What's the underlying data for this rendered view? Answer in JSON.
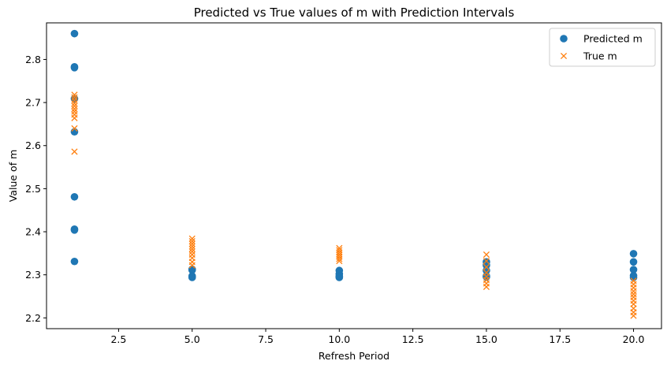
{
  "chart_data": {
    "type": "scatter",
    "title": "Predicted vs True values of m with Prediction Intervals",
    "xlabel": "Refresh Period",
    "ylabel": "Value of m",
    "xlim": [
      0.05,
      20.95
    ],
    "ylim": [
      2.175,
      2.885
    ],
    "xticks": [
      "2.5",
      "5.0",
      "7.5",
      "10.0",
      "12.5",
      "15.0",
      "17.5",
      "20.0"
    ],
    "xtick_values": [
      2.5,
      5.0,
      7.5,
      10.0,
      12.5,
      15.0,
      17.5,
      20.0
    ],
    "yticks": [
      "2.2",
      "2.3",
      "2.4",
      "2.5",
      "2.6",
      "2.7",
      "2.8"
    ],
    "ytick_values": [
      2.2,
      2.3,
      2.4,
      2.5,
      2.6,
      2.7,
      2.8
    ],
    "grid": false,
    "legend_position": "top-right",
    "series": [
      {
        "name": "Predicted m",
        "marker": "circle",
        "color": "#1f77b4",
        "points": [
          [
            1,
            2.86
          ],
          [
            1,
            2.783
          ],
          [
            1,
            2.781
          ],
          [
            1,
            2.709
          ],
          [
            1,
            2.632
          ],
          [
            1,
            2.481
          ],
          [
            1,
            2.406
          ],
          [
            1,
            2.404
          ],
          [
            1,
            2.331
          ],
          [
            5,
            2.313
          ],
          [
            5,
            2.311
          ],
          [
            5,
            2.297
          ],
          [
            5,
            2.295
          ],
          [
            5,
            2.294
          ],
          [
            10,
            2.31
          ],
          [
            10,
            2.302
          ],
          [
            10,
            2.297
          ],
          [
            10,
            2.295
          ],
          [
            10,
            2.294
          ],
          [
            15,
            2.33
          ],
          [
            15,
            2.322
          ],
          [
            15,
            2.31
          ],
          [
            15,
            2.297
          ],
          [
            15,
            2.295
          ],
          [
            20,
            2.349
          ],
          [
            20,
            2.33
          ],
          [
            20,
            2.312
          ],
          [
            20,
            2.298
          ],
          [
            20,
            2.294
          ]
        ]
      },
      {
        "name": "True m",
        "marker": "x",
        "color": "#ff7f0e",
        "points": [
          [
            1,
            2.718
          ],
          [
            1,
            2.712
          ],
          [
            1,
            2.705
          ],
          [
            1,
            2.698
          ],
          [
            1,
            2.692
          ],
          [
            1,
            2.685
          ],
          [
            1,
            2.679
          ],
          [
            1,
            2.672
          ],
          [
            1,
            2.664
          ],
          [
            1,
            2.64
          ],
          [
            1,
            2.586
          ],
          [
            5,
            2.384
          ],
          [
            5,
            2.378
          ],
          [
            5,
            2.372
          ],
          [
            5,
            2.366
          ],
          [
            5,
            2.36
          ],
          [
            5,
            2.354
          ],
          [
            5,
            2.347
          ],
          [
            5,
            2.339
          ],
          [
            5,
            2.33
          ],
          [
            5,
            2.322
          ],
          [
            10,
            2.362
          ],
          [
            10,
            2.357
          ],
          [
            10,
            2.352
          ],
          [
            10,
            2.347
          ],
          [
            10,
            2.342
          ],
          [
            10,
            2.337
          ],
          [
            10,
            2.332
          ],
          [
            15,
            2.347
          ],
          [
            15,
            2.332
          ],
          [
            15,
            2.318
          ],
          [
            15,
            2.305
          ],
          [
            15,
            2.296
          ],
          [
            15,
            2.288
          ],
          [
            15,
            2.28
          ],
          [
            15,
            2.272
          ],
          [
            20,
            2.286
          ],
          [
            20,
            2.278
          ],
          [
            20,
            2.27
          ],
          [
            20,
            2.262
          ],
          [
            20,
            2.255
          ],
          [
            20,
            2.248
          ],
          [
            20,
            2.24
          ],
          [
            20,
            2.232
          ],
          [
            20,
            2.222
          ],
          [
            20,
            2.213
          ],
          [
            20,
            2.205
          ]
        ]
      }
    ]
  }
}
